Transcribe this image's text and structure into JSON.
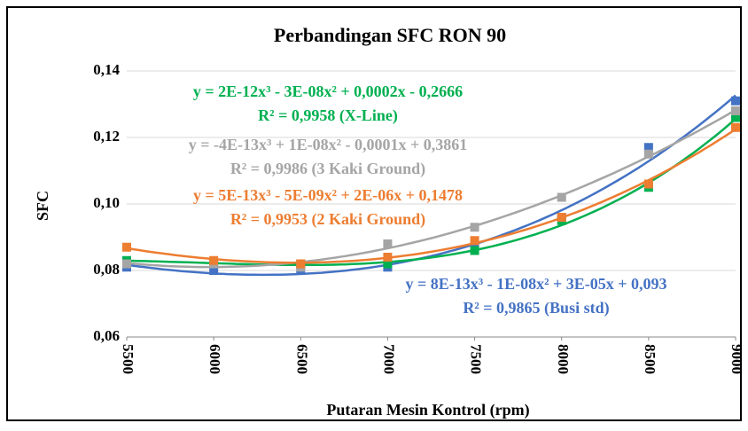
{
  "chart_data": {
    "type": "scatter",
    "title": "Perbandingan  SFC RON 90",
    "x_label": "Putaran Mesin Kontrol (rpm)",
    "y_label": "SFC",
    "x": [
      5500,
      6000,
      6500,
      7000,
      7500,
      8000,
      8500,
      9000
    ],
    "xlim": [
      5500,
      9000
    ],
    "xticks": [
      5500,
      6000,
      6500,
      7000,
      7500,
      8000,
      8500,
      9000
    ],
    "ylim": [
      0.06,
      0.14
    ],
    "yticks": [
      {
        "value": 0.06,
        "label": "0,06"
      },
      {
        "value": 0.08,
        "label": "0,08"
      },
      {
        "value": 0.1,
        "label": "0,10"
      },
      {
        "value": 0.12,
        "label": "0,12"
      },
      {
        "value": 0.14,
        "label": "0,14"
      }
    ],
    "grid": true,
    "trendline": "polynomial-3",
    "series": [
      {
        "name": "Busi std",
        "color": "#4472c4",
        "values": [
          0.081,
          0.08,
          0.08,
          0.081,
          0.087,
          0.096,
          0.117,
          0.131
        ]
      },
      {
        "name": "X-Line",
        "color": "#00b050",
        "values": [
          0.083,
          0.082,
          0.082,
          0.082,
          0.086,
          0.095,
          0.105,
          0.126
        ]
      },
      {
        "name": "3 Kaki Ground",
        "color": "#a5a5a5",
        "values": [
          0.082,
          0.082,
          0.081,
          0.088,
          0.093,
          0.102,
          0.115,
          0.128
        ]
      },
      {
        "name": "2 Kaki Ground",
        "color": "#ed7d31",
        "values": [
          0.087,
          0.083,
          0.082,
          0.084,
          0.089,
          0.096,
          0.106,
          0.123
        ]
      }
    ],
    "annotations": [
      {
        "lines": [
          "y = 2E-12x³ - 3E-08x² + 0,0002x - 0,2666",
          "R² = 0,9958 (X-Line)"
        ],
        "color": "#00b050"
      },
      {
        "lines": [
          "y = -4E-13x³ + 1E-08x² - 0,0001x + 0,3861",
          "R² = 0,9986 (3 Kaki Ground)"
        ],
        "color": "#a5a5a5"
      },
      {
        "lines": [
          "y = 5E-13x³ - 5E-09x² + 2E-06x + 0,1478",
          "R² = 0,9953 (2 Kaki Ground)"
        ],
        "color": "#ed7d31"
      },
      {
        "lines": [
          "y = 8E-13x³ - 1E-08x² + 3E-05x + 0,093",
          "R² = 0,9865 (Busi std)"
        ],
        "color": "#4472c4"
      }
    ]
  }
}
